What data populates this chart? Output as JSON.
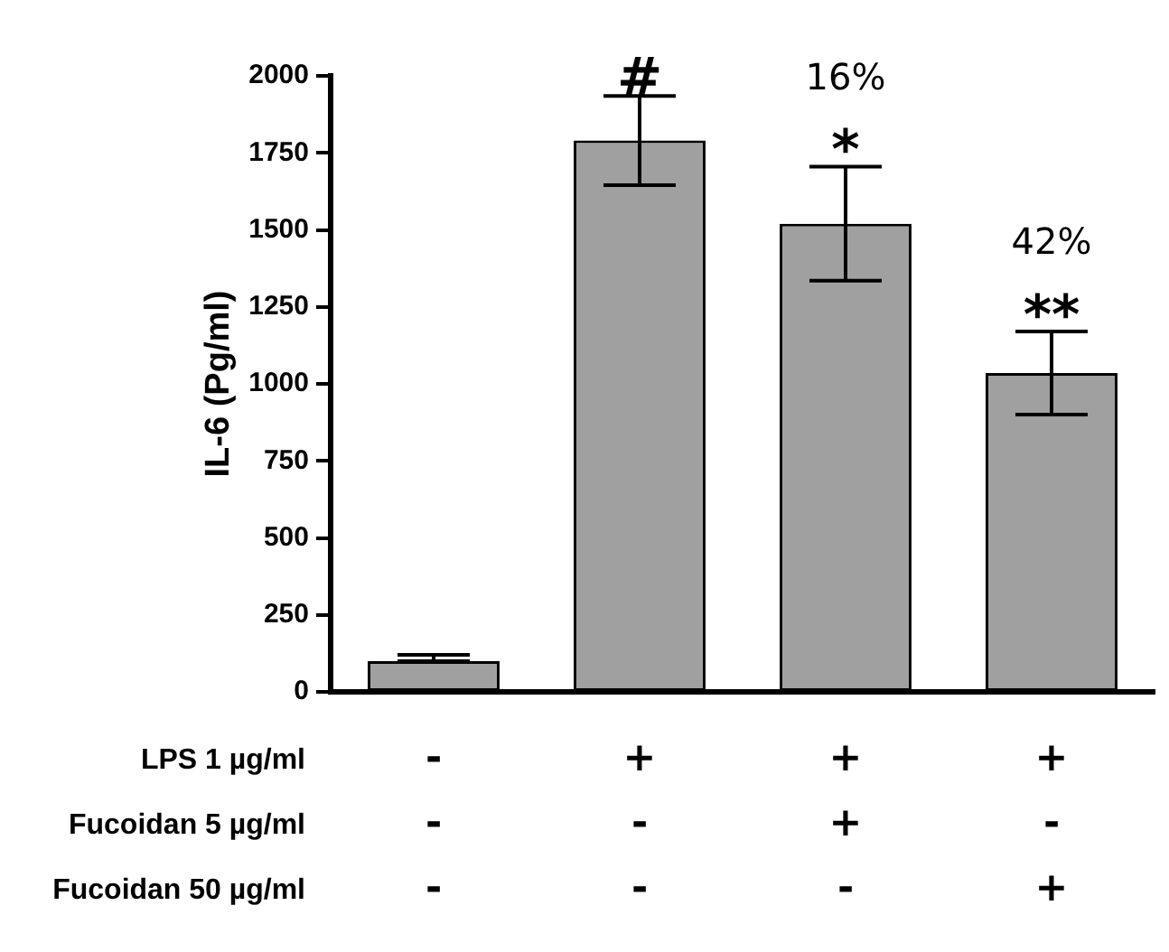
{
  "chart_data": {
    "type": "bar",
    "ylabel": "IL-6 (Pg/ml)",
    "categories": [
      "-\n-\n-",
      "+\n-\n-",
      "+\n+\n-",
      "+\n-\n+"
    ],
    "values": [
      100,
      1790,
      1520,
      1035
    ],
    "errors": [
      [
        100,
        120
      ],
      145,
      185,
      135
    ],
    "color": "#a0a0a0",
    "ylim": [
      0,
      2000
    ],
    "yticks": [
      0,
      250,
      500,
      750,
      1000,
      1250,
      1500,
      1750,
      2000
    ],
    "grid": false,
    "legend": false,
    "annotations": [
      {
        "text": "#",
        "x": "+\n-\n-",
        "y": 1940
      },
      {
        "text": "*",
        "x": "+\n+\n-",
        "y": 1705
      },
      {
        "text": "16%",
        "x": "+\n+\n-",
        "y": 1705
      },
      {
        "text": "**",
        "x": "+\n-\n+",
        "y": 1170
      },
      {
        "text": "42%",
        "x": "+\n-\n+",
        "y": 1170
      },
      "LPS 1 µg/ml",
      "Fucoidan 5 µg/ml",
      "Fucoidan 50 µg/ml"
    ]
  }
}
